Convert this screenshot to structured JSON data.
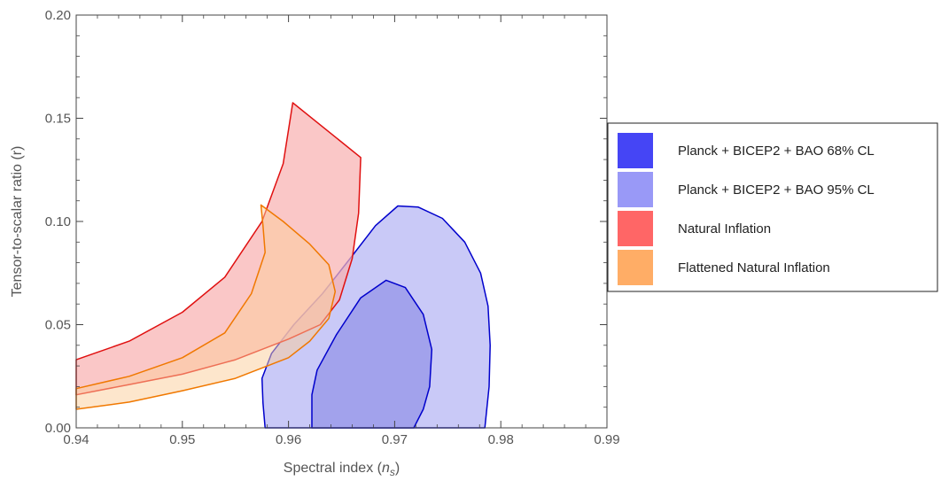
{
  "chart_data": {
    "type": "area",
    "title": "",
    "xlabel_main": "Spectral index (",
    "xlabel_symbol": "n",
    "xlabel_sub": "s",
    "xlabel_close": ")",
    "ylabel": "Tensor-to-scalar ratio (r)",
    "xlim": [
      0.94,
      0.99
    ],
    "ylim": [
      0.0,
      0.2
    ],
    "x_ticks": [
      "0.94",
      "0.95",
      "0.96",
      "0.97",
      "0.98",
      "0.99"
    ],
    "y_ticks": [
      "0.00",
      "0.05",
      "0.10",
      "0.15",
      "0.20"
    ],
    "grid": false,
    "legend_position": "right",
    "series": [
      {
        "name": "Planck + BICEP2 + BAO 95% CL",
        "fill": "#c9c9f7",
        "stroke": "#0000cc",
        "points": [
          [
            0.9578,
            0.0
          ],
          [
            0.9576,
            0.012
          ],
          [
            0.9575,
            0.024
          ],
          [
            0.9584,
            0.036
          ],
          [
            0.9605,
            0.05
          ],
          [
            0.9632,
            0.065
          ],
          [
            0.9658,
            0.082
          ],
          [
            0.9682,
            0.098
          ],
          [
            0.9703,
            0.1075
          ],
          [
            0.9722,
            0.107
          ],
          [
            0.9745,
            0.1015
          ],
          [
            0.9766,
            0.09
          ],
          [
            0.9781,
            0.075
          ],
          [
            0.9788,
            0.059
          ],
          [
            0.979,
            0.04
          ],
          [
            0.9789,
            0.02
          ],
          [
            0.9785,
            0.0
          ]
        ]
      },
      {
        "name": "Planck + BICEP2 + BAO 68% CL",
        "fill": "#a2a2ec",
        "stroke": "#0000cc",
        "points": [
          [
            0.9622,
            0.0
          ],
          [
            0.9622,
            0.016
          ],
          [
            0.9627,
            0.028
          ],
          [
            0.9645,
            0.045
          ],
          [
            0.9668,
            0.063
          ],
          [
            0.9692,
            0.0715
          ],
          [
            0.971,
            0.068
          ],
          [
            0.9727,
            0.055
          ],
          [
            0.9735,
            0.038
          ],
          [
            0.9733,
            0.02
          ],
          [
            0.9727,
            0.009
          ],
          [
            0.9718,
            0.0
          ]
        ]
      },
      {
        "name": "Natural Inflation",
        "fill": "#f8b2b2",
        "fill_opacity": 0.72,
        "stroke": "#e01010",
        "points": [
          [
            0.94,
            0.033
          ],
          [
            0.945,
            0.042
          ],
          [
            0.95,
            0.056
          ],
          [
            0.954,
            0.073
          ],
          [
            0.9575,
            0.1
          ],
          [
            0.9595,
            0.128
          ],
          [
            0.9604,
            0.1575
          ],
          [
            0.9668,
            0.131
          ],
          [
            0.9666,
            0.104
          ],
          [
            0.966,
            0.082
          ],
          [
            0.9648,
            0.062
          ],
          [
            0.963,
            0.05
          ],
          [
            0.96,
            0.043
          ],
          [
            0.955,
            0.033
          ],
          [
            0.95,
            0.026
          ],
          [
            0.945,
            0.021
          ],
          [
            0.94,
            0.016
          ]
        ]
      },
      {
        "name": "Flattened Natural Inflation",
        "fill": "#fbcd99",
        "fill_opacity": 0.5,
        "stroke": "#f07800",
        "points": [
          [
            0.94,
            0.019
          ],
          [
            0.945,
            0.025
          ],
          [
            0.95,
            0.034
          ],
          [
            0.954,
            0.046
          ],
          [
            0.9565,
            0.065
          ],
          [
            0.9578,
            0.085
          ],
          [
            0.9576,
            0.098
          ],
          [
            0.9574,
            0.108
          ],
          [
            0.9595,
            0.1
          ],
          [
            0.962,
            0.089
          ],
          [
            0.9638,
            0.079
          ],
          [
            0.9644,
            0.066
          ],
          [
            0.9638,
            0.053
          ],
          [
            0.962,
            0.042
          ],
          [
            0.96,
            0.034
          ],
          [
            0.955,
            0.024
          ],
          [
            0.95,
            0.018
          ],
          [
            0.945,
            0.0125
          ],
          [
            0.94,
            0.009
          ]
        ]
      }
    ],
    "legend": [
      {
        "label": "Planck + BICEP2 + BAO 68% CL",
        "color": "#4545f5"
      },
      {
        "label": "Planck + BICEP2 + BAO 95% CL",
        "color": "#9999f7"
      },
      {
        "label": "Natural Inflation",
        "color": "#ff6666"
      },
      {
        "label": "Flattened Natural Inflation",
        "color": "#ffad66"
      }
    ]
  }
}
